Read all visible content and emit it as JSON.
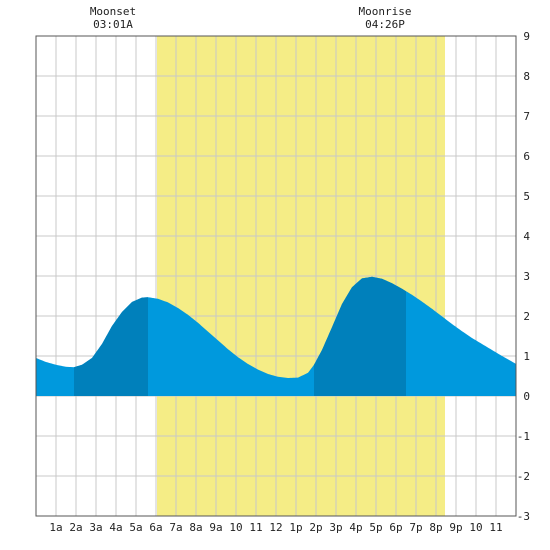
{
  "chart_data": {
    "type": "area",
    "x_ticks": [
      "1a",
      "2a",
      "3a",
      "4a",
      "5a",
      "6a",
      "7a",
      "8a",
      "9a",
      "10",
      "11",
      "12",
      "1p",
      "2p",
      "3p",
      "4p",
      "5p",
      "6p",
      "7p",
      "8p",
      "9p",
      "10",
      "11"
    ],
    "y_ticks": [
      "9",
      "8",
      "7",
      "6",
      "5",
      "4",
      "3",
      "2",
      "1",
      "0",
      "-1",
      "-2",
      "-3"
    ],
    "ylim": [
      -3,
      9
    ],
    "xlim": [
      0,
      24
    ],
    "grid": true,
    "daylight": {
      "start_hour": 6.05,
      "end_hour": 20.45
    },
    "moon": {
      "moonset_label": "Moonset",
      "moonset_time": "03:01A",
      "moonset_hour": 3.02,
      "moonrise_label": "Moonrise",
      "moonrise_time": "04:26P",
      "moonrise_hour": 16.43
    },
    "tide_curve": {
      "x": [
        0,
        0.5,
        1,
        1.5,
        1.9,
        2.3,
        2.8,
        3.3,
        3.8,
        4.3,
        4.8,
        5.3,
        5.6,
        6.1,
        6.6,
        7.1,
        7.6,
        8.1,
        8.6,
        9.1,
        9.6,
        10.1,
        10.6,
        11.1,
        11.6,
        12.1,
        12.6,
        13.1,
        13.6,
        13.9,
        14.3,
        14.8,
        15.3,
        15.8,
        16.3,
        16.8,
        17.3,
        17.8,
        18.3,
        18.8,
        19.3,
        19.8,
        20.3,
        20.8,
        21.3,
        21.8,
        22.3,
        22.8,
        23.3,
        23.8,
        24
      ],
      "y": [
        0.95,
        0.85,
        0.78,
        0.73,
        0.72,
        0.78,
        0.95,
        1.3,
        1.75,
        2.1,
        2.35,
        2.46,
        2.47,
        2.43,
        2.34,
        2.2,
        2.03,
        1.83,
        1.61,
        1.39,
        1.17,
        0.97,
        0.8,
        0.66,
        0.55,
        0.48,
        0.45,
        0.46,
        0.58,
        0.78,
        1.15,
        1.72,
        2.3,
        2.72,
        2.94,
        2.98,
        2.93,
        2.82,
        2.68,
        2.53,
        2.36,
        2.18,
        1.99,
        1.8,
        1.62,
        1.45,
        1.3,
        1.15,
        1.0,
        0.86,
        0.8
      ]
    },
    "dark_segments": [
      [
        1.9,
        5.6
      ],
      [
        13.9,
        18.5
      ]
    ],
    "colors": {
      "tide": "#0099dd",
      "tide_dark": "#0080bb",
      "daylight": "#f5ed86",
      "grid": "#c8c8c8",
      "border": "#555555"
    }
  }
}
